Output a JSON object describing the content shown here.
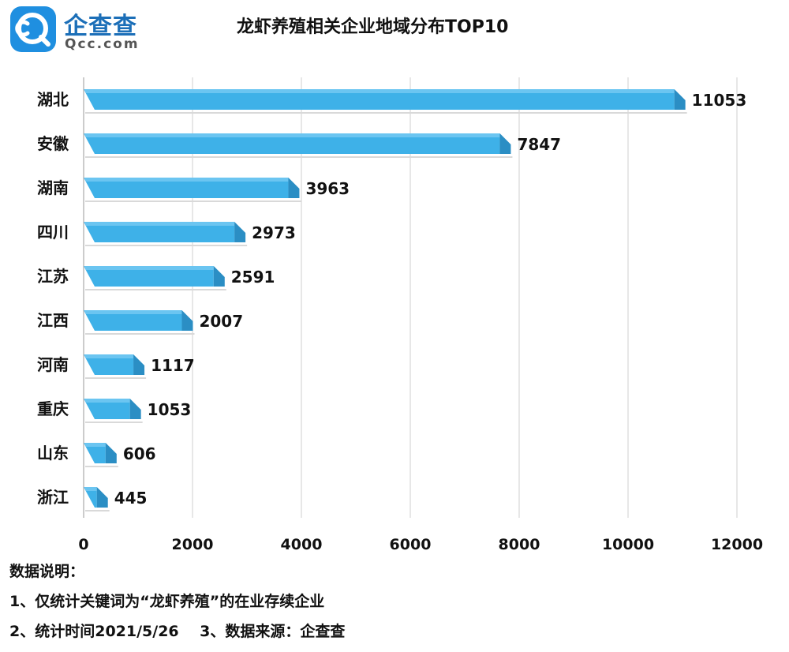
{
  "logo": {
    "brand_cn": "企查查",
    "brand_en": "Qcc.com",
    "icon": "qcc-magnifier-logo-icon"
  },
  "chart_data": {
    "type": "bar",
    "orientation": "horizontal",
    "title": "龙虾养殖相关企业地域分布TOP10",
    "categories": [
      "湖北",
      "安徽",
      "湖南",
      "四川",
      "江苏",
      "江西",
      "河南",
      "重庆",
      "山东",
      "浙江"
    ],
    "values": [
      11053,
      7847,
      3963,
      2973,
      2591,
      2007,
      1117,
      1053,
      606,
      445
    ],
    "value_labels": [
      "11053",
      "7847",
      "3963",
      "2973",
      "2591",
      "2007",
      "1117",
      "1053",
      "606",
      "445"
    ],
    "x_ticks": [
      0,
      2000,
      4000,
      6000,
      8000,
      10000,
      12000
    ],
    "x_tick_labels": [
      "0",
      "2000",
      "4000",
      "6000",
      "8000",
      "10000",
      "12000"
    ],
    "xlim": [
      0,
      12000
    ],
    "grid": "vertical",
    "colors": {
      "bar": "#3eb1e8",
      "bar_side": "#2b8ec4",
      "bar_top": "#8fd6f7",
      "grid": "#cfcfcf"
    }
  },
  "notes": {
    "heading": "数据说明：",
    "line1": "1、仅统计关键词为“龙虾养殖”的在业存续企业",
    "line2": "2、统计时间2021/5/26    3、数据来源：企查查"
  }
}
